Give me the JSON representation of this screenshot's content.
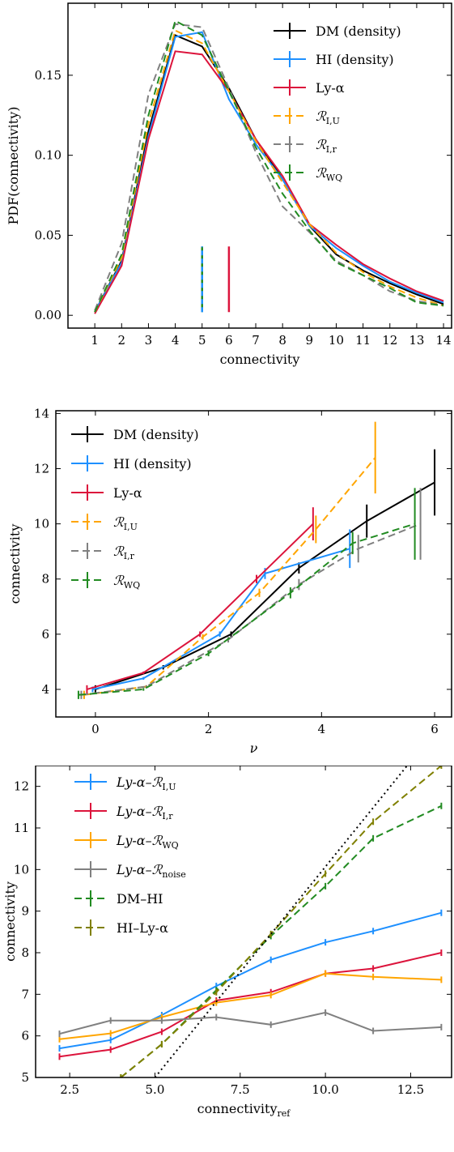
{
  "chart_data": [
    {
      "type": "line",
      "xlabel": "connectivity",
      "ylabel": "PDF(connectivity)",
      "xlim": [
        0,
        14.3
      ],
      "ylim": [
        -0.008,
        0.195
      ],
      "x_ticks": [
        "1",
        "2",
        "3",
        "4",
        "5",
        "6",
        "7",
        "8",
        "9",
        "10",
        "11",
        "12",
        "13",
        "14"
      ],
      "y_ticks": [
        "0.00",
        "0.05",
        "0.10",
        "0.15"
      ],
      "legend_position": "top-right",
      "series": [
        {
          "name": "DM (density)",
          "color": "#000000",
          "dash": "solid",
          "x": [
            1,
            2,
            3,
            4,
            5,
            6,
            7,
            8,
            9,
            10,
            11,
            12,
            13,
            14
          ],
          "y": [
            0.002,
            0.034,
            0.115,
            0.175,
            0.168,
            0.142,
            0.11,
            0.085,
            0.056,
            0.038,
            0.028,
            0.02,
            0.013,
            0.007
          ]
        },
        {
          "name": "HI (density)",
          "color": "#1e90ff",
          "dash": "solid",
          "x": [
            1,
            2,
            3,
            4,
            5,
            6,
            7,
            8,
            9,
            10,
            11,
            12,
            13,
            14
          ],
          "y": [
            0.002,
            0.033,
            0.112,
            0.174,
            0.177,
            0.135,
            0.107,
            0.085,
            0.056,
            0.042,
            0.031,
            0.021,
            0.014,
            0.008
          ]
        },
        {
          "name": "Ly-α",
          "color": "#dc143c",
          "dash": "solid",
          "x": [
            1,
            2,
            3,
            4,
            5,
            6,
            7,
            8,
            9,
            10,
            11,
            12,
            13,
            14
          ],
          "y": [
            0.001,
            0.031,
            0.11,
            0.165,
            0.163,
            0.14,
            0.11,
            0.087,
            0.057,
            0.044,
            0.032,
            0.023,
            0.015,
            0.009
          ]
        },
        {
          "name": "ℛ_I,U",
          "color": "#ffa500",
          "dash": "dashed",
          "x": [
            1,
            2,
            3,
            4,
            5,
            6,
            7,
            8,
            9,
            10,
            11,
            12,
            13,
            14
          ],
          "y": [
            0.002,
            0.036,
            0.12,
            0.178,
            0.17,
            0.14,
            0.109,
            0.083,
            0.057,
            0.039,
            0.027,
            0.018,
            0.011,
            0.006
          ]
        },
        {
          "name": "ℛ_I,r",
          "color": "#808080",
          "dash": "dashed",
          "x": [
            1,
            2,
            3,
            4,
            5,
            6,
            7,
            8,
            9,
            10,
            11,
            12,
            13,
            14
          ],
          "y": [
            0.003,
            0.045,
            0.138,
            0.182,
            0.18,
            0.142,
            0.102,
            0.068,
            0.052,
            0.034,
            0.025,
            0.015,
            0.009,
            0.006
          ]
        },
        {
          "name": "ℛ_WQ",
          "color": "#228b22",
          "dash": "dashed",
          "x": [
            1,
            2,
            3,
            4,
            5,
            6,
            7,
            8,
            9,
            10,
            11,
            12,
            13,
            14
          ],
          "y": [
            0.002,
            0.038,
            0.125,
            0.184,
            0.175,
            0.14,
            0.105,
            0.076,
            0.053,
            0.033,
            0.025,
            0.017,
            0.008,
            0.006
          ]
        }
      ],
      "vlines": [
        {
          "series": "ℛ_WQ",
          "x": 5.0,
          "color": "#228b22"
        },
        {
          "series": "HI (density)",
          "x": 5.0,
          "color": "#1e90ff"
        },
        {
          "series": "Ly-α",
          "x": 6.0,
          "color": "#dc143c"
        }
      ]
    },
    {
      "type": "line",
      "xlabel": "ν",
      "ylabel": "connectivity",
      "xlim": [
        -0.7,
        6.3
      ],
      "ylim": [
        3.0,
        14.1
      ],
      "x_ticks": [
        "0",
        "2",
        "4",
        "6"
      ],
      "y_ticks": [
        "4",
        "6",
        "8",
        "10",
        "12",
        "14"
      ],
      "legend_position": "top-left",
      "series": [
        {
          "name": "DM (density)",
          "color": "#000000",
          "dash": "solid",
          "x": [
            0.0,
            1.2,
            2.4,
            3.6,
            4.8,
            6.0
          ],
          "y": [
            4.0,
            4.8,
            6.0,
            8.4,
            10.1,
            11.5
          ],
          "err": [
            0.15,
            0.08,
            0.1,
            0.2,
            0.6,
            1.2
          ]
        },
        {
          "name": "HI (density)",
          "color": "#1e90ff",
          "dash": "solid",
          "x": [
            -0.05,
            0.85,
            2.2,
            3.0,
            4.5
          ],
          "y": [
            4.0,
            4.4,
            6.0,
            8.2,
            9.1
          ],
          "err": [
            0.1,
            0.05,
            0.1,
            0.2,
            0.7
          ]
        },
        {
          "name": "Ly-α",
          "color": "#dc143c",
          "dash": "solid",
          "x": [
            -0.15,
            0.85,
            1.85,
            2.85,
            3.85
          ],
          "y": [
            4.0,
            4.6,
            6.0,
            8.0,
            10.0
          ],
          "err": [
            0.15,
            0.05,
            0.1,
            0.15,
            0.6
          ]
        },
        {
          "name": "ℛ_I,U",
          "color": "#ffa500",
          "dash": "dashed",
          "x": [
            -0.2,
            0.9,
            1.9,
            2.9,
            3.9,
            4.95
          ],
          "y": [
            3.8,
            4.1,
            5.9,
            7.5,
            9.8,
            12.4
          ],
          "err": [
            0.15,
            0.05,
            0.1,
            0.15,
            0.5,
            1.3
          ]
        },
        {
          "name": "ℛ_I,r",
          "color": "#808080",
          "dash": "dashed",
          "x": [
            -0.25,
            0.9,
            2.35,
            3.6,
            4.65,
            5.75
          ],
          "y": [
            3.8,
            4.1,
            5.8,
            7.8,
            9.1,
            10.0
          ],
          "err": [
            0.15,
            0.05,
            0.1,
            0.2,
            0.5,
            1.3
          ]
        },
        {
          "name": "ℛ_WQ",
          "color": "#228b22",
          "dash": "dashed",
          "x": [
            -0.3,
            0.85,
            2.0,
            3.45,
            4.55,
            5.65
          ],
          "y": [
            3.8,
            4.0,
            5.3,
            7.5,
            9.3,
            10.0
          ],
          "err": [
            0.15,
            0.05,
            0.1,
            0.2,
            0.4,
            1.3
          ]
        }
      ]
    },
    {
      "type": "line",
      "xlabel": "connectivity_ref",
      "ylabel": "connectivity",
      "xlim": [
        1.5,
        13.7
      ],
      "ylim": [
        5.0,
        12.5
      ],
      "x_ticks": [
        "2.5",
        "5.0",
        "7.5",
        "10.0",
        "12.5"
      ],
      "y_ticks": [
        "5",
        "6",
        "7",
        "8",
        "9",
        "10",
        "11",
        "12"
      ],
      "legend_position": "top-left",
      "series": [
        {
          "name": "Ly-α–ℛ_I,U",
          "color": "#1e90ff",
          "dash": "solid",
          "x": [
            2.2,
            3.7,
            5.2,
            6.8,
            8.4,
            10.0,
            11.4,
            13.4
          ],
          "y": [
            5.7,
            5.9,
            6.5,
            7.2,
            7.83,
            8.25,
            8.52,
            8.96
          ]
        },
        {
          "name": "Ly-α–ℛ_I,r",
          "color": "#dc143c",
          "dash": "solid",
          "x": [
            2.2,
            3.7,
            5.2,
            6.8,
            8.4,
            10.0,
            11.4,
            13.4
          ],
          "y": [
            5.5,
            5.67,
            6.1,
            6.85,
            7.05,
            7.5,
            7.62,
            8.0
          ]
        },
        {
          "name": "Ly-α–ℛ_WQ",
          "color": "#ffa500",
          "dash": "solid",
          "x": [
            2.2,
            3.7,
            5.2,
            6.8,
            8.4,
            10.0,
            11.4,
            13.4
          ],
          "y": [
            5.92,
            6.06,
            6.45,
            6.8,
            6.98,
            7.5,
            7.42,
            7.35
          ]
        },
        {
          "name": "Ly-α–ℛ_noise",
          "color": "#808080",
          "dash": "solid",
          "x": [
            2.2,
            3.7,
            5.2,
            6.8,
            8.4,
            10.0,
            11.4,
            13.4
          ],
          "y": [
            6.05,
            6.37,
            6.37,
            6.45,
            6.27,
            6.56,
            6.12,
            6.21
          ]
        },
        {
          "name": "DM–HI",
          "color": "#228b22",
          "dash": "dashed",
          "x": [
            4.0,
            5.2,
            6.8,
            8.4,
            10.0,
            11.4,
            13.4
          ],
          "y": [
            5.0,
            5.8,
            7.1,
            8.4,
            9.6,
            10.75,
            11.53
          ]
        },
        {
          "name": "HI–Ly-α",
          "color": "#808000",
          "dash": "dashed",
          "x": [
            4.0,
            5.2,
            6.8,
            8.4,
            10.0,
            11.4,
            13.4
          ],
          "y": [
            5.0,
            5.8,
            7.05,
            8.45,
            9.9,
            11.15,
            12.5
          ]
        },
        {
          "name": "",
          "color": "#000000",
          "dash": "dotted",
          "x": [
            5.0,
            12.4
          ],
          "y": [
            5.0,
            12.5
          ]
        }
      ]
    }
  ]
}
